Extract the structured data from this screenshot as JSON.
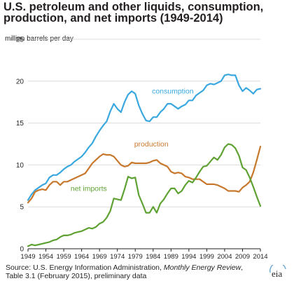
{
  "title_lines": [
    "U.S. petroleum and other liquids, consumption,",
    "production, and net imports (1949-2014)"
  ],
  "units_label": "million barrels per day",
  "source": {
    "line1_prefix": "Source: U.S. Energy Information Administration, ",
    "line1_italic": "Monthly Energy Review",
    "line1_suffix": ",",
    "line2": "Table 3.1 (February 2015), preliminary data"
  },
  "logo_text": "eia",
  "colors": {
    "consumption": "#3aa8df",
    "production": "#c8782c",
    "net_imports": "#5fa234",
    "gridline": "#dcdcdc",
    "axis": "#231f20"
  },
  "chart_data": {
    "type": "line",
    "title": "U.S. petroleum and other liquids, consumption, production, and net imports (1949-2014)",
    "ylabel": "million barrels per day",
    "ylim": [
      0,
      25
    ],
    "xlim": [
      1949,
      2014
    ],
    "x_ticks": [
      1949,
      1954,
      1959,
      1964,
      1969,
      1974,
      1979,
      1984,
      1989,
      1994,
      1999,
      2004,
      2009,
      2014
    ],
    "y_ticks": [
      0,
      5,
      10,
      15,
      20,
      25
    ],
    "grid": "horizontal",
    "legend": "inline labels",
    "x": [
      1949,
      1950,
      1951,
      1952,
      1953,
      1954,
      1955,
      1956,
      1957,
      1958,
      1959,
      1960,
      1961,
      1962,
      1963,
      1964,
      1965,
      1966,
      1967,
      1968,
      1969,
      1970,
      1971,
      1972,
      1973,
      1974,
      1975,
      1976,
      1977,
      1978,
      1979,
      1980,
      1981,
      1982,
      1983,
      1984,
      1985,
      1986,
      1987,
      1988,
      1989,
      1990,
      1991,
      1992,
      1993,
      1994,
      1995,
      1996,
      1997,
      1998,
      1999,
      2000,
      2001,
      2002,
      2003,
      2004,
      2005,
      2006,
      2007,
      2008,
      2009,
      2010,
      2011,
      2012,
      2013,
      2014
    ],
    "series": [
      {
        "name": "consumption",
        "values": [
          5.8,
          6.5,
          7.0,
          7.3,
          7.6,
          7.8,
          8.5,
          8.8,
          8.8,
          9.1,
          9.5,
          9.8,
          10.0,
          10.4,
          10.7,
          11.0,
          11.5,
          12.1,
          12.6,
          13.4,
          14.1,
          14.7,
          15.2,
          16.4,
          17.3,
          16.7,
          16.3,
          17.5,
          18.4,
          18.8,
          18.5,
          17.1,
          16.1,
          15.3,
          15.2,
          15.7,
          15.7,
          16.3,
          16.7,
          17.3,
          17.3,
          17.0,
          16.7,
          17.0,
          17.2,
          17.7,
          17.7,
          18.3,
          18.6,
          18.9,
          19.5,
          19.7,
          19.6,
          19.8,
          20.0,
          20.7,
          20.8,
          20.7,
          20.7,
          19.5,
          18.8,
          19.2,
          18.9,
          18.5,
          19.0,
          19.1
        ]
      },
      {
        "name": "production",
        "values": [
          5.5,
          6.0,
          6.8,
          7.0,
          7.1,
          7.0,
          7.6,
          8.0,
          8.0,
          7.6,
          8.0,
          8.0,
          8.2,
          8.4,
          8.6,
          8.8,
          9.0,
          9.6,
          10.2,
          10.6,
          11.0,
          11.3,
          11.2,
          11.2,
          11.0,
          10.5,
          10.0,
          9.8,
          9.9,
          10.3,
          10.2,
          10.2,
          10.2,
          10.2,
          10.3,
          10.5,
          10.6,
          10.2,
          10.0,
          9.8,
          9.2,
          9.0,
          9.1,
          9.0,
          8.6,
          8.5,
          8.3,
          8.3,
          8.3,
          8.0,
          7.7,
          7.7,
          7.7,
          7.6,
          7.4,
          7.2,
          6.9,
          6.9,
          6.9,
          6.8,
          7.3,
          7.6,
          8.0,
          9.1,
          10.6,
          12.2
        ]
      },
      {
        "name": "net imports",
        "values": [
          0.3,
          0.5,
          0.4,
          0.5,
          0.6,
          0.7,
          0.8,
          1.0,
          1.1,
          1.4,
          1.6,
          1.6,
          1.7,
          1.9,
          2.0,
          2.1,
          2.3,
          2.5,
          2.4,
          2.6,
          3.0,
          3.2,
          3.7,
          4.5,
          6.0,
          5.9,
          5.8,
          7.1,
          8.6,
          8.4,
          8.5,
          6.4,
          5.4,
          4.3,
          4.3,
          5.0,
          4.3,
          5.4,
          5.9,
          6.6,
          7.2,
          7.2,
          6.6,
          6.9,
          7.6,
          8.1,
          7.9,
          8.5,
          9.2,
          9.8,
          9.9,
          10.4,
          10.9,
          10.6,
          11.2,
          12.1,
          12.5,
          12.4,
          12.0,
          11.1,
          9.7,
          9.4,
          8.5,
          7.4,
          6.2,
          5.1
        ]
      }
    ],
    "annotations": [
      "consumption",
      "production",
      "net imports"
    ]
  }
}
